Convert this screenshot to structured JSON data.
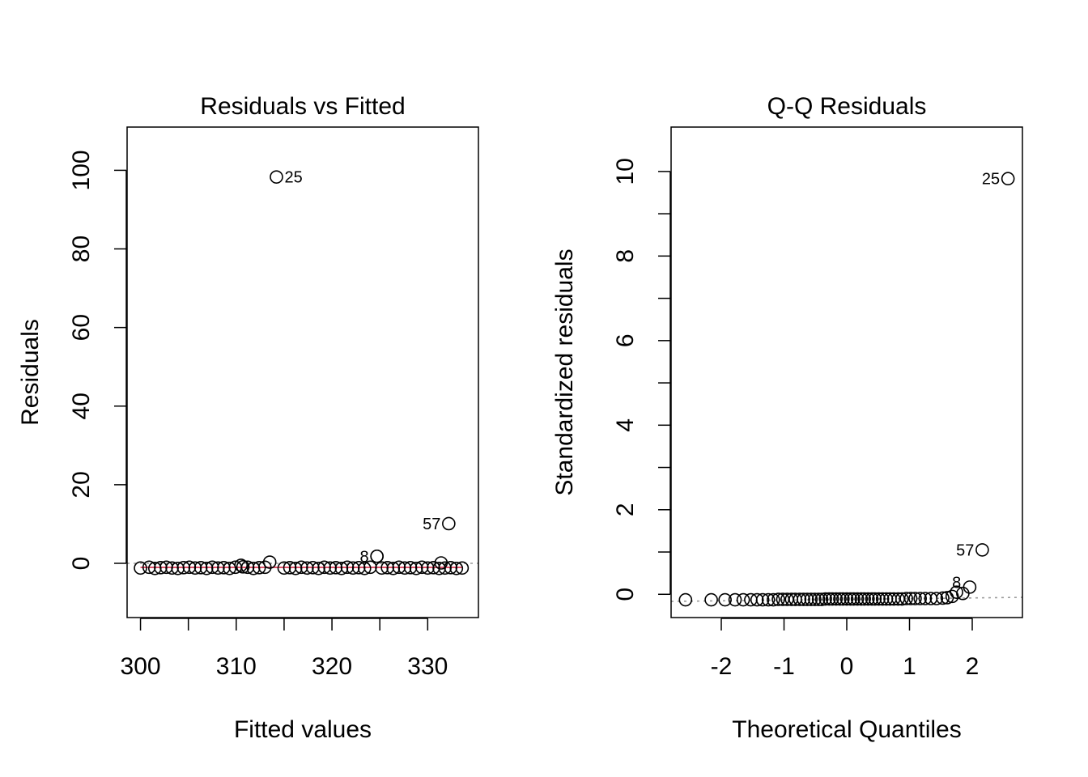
{
  "chart_data": [
    {
      "type": "scatter",
      "title": "Residuals vs Fitted",
      "xlabel": "Fitted values",
      "ylabel": "Residuals",
      "xlim": [
        298.6,
        335.3
      ],
      "ylim": [
        -13.8,
        111
      ],
      "xticks": [
        300,
        310,
        320,
        330
      ],
      "yticks": [
        0,
        20,
        40,
        60,
        80,
        100
      ],
      "reference_line": {
        "y": 0,
        "style": "dotted",
        "color": "#999999"
      },
      "smooth_line": {
        "color": "#DF536B"
      },
      "labeled_points": [
        {
          "label": "25",
          "x": 314.2,
          "y": 98.3,
          "side": "right"
        },
        {
          "label": "57",
          "x": 332.2,
          "y": 10.1,
          "side": "left"
        },
        {
          "label": "8",
          "x": 324.7,
          "y": 1.8,
          "side": "left"
        }
      ],
      "points": {
        "x": [
          300.0,
          300.9,
          301.5,
          302.1,
          302.7,
          303.3,
          303.9,
          304.5,
          305.1,
          305.7,
          306.3,
          306.9,
          307.5,
          308.1,
          308.7,
          309.3,
          309.9,
          310.5,
          310.7,
          311.2,
          311.8,
          312.4,
          313.0,
          313.5,
          315.0,
          315.6,
          316.2,
          316.8,
          317.4,
          318.0,
          318.6,
          319.2,
          319.8,
          320.4,
          321.0,
          321.6,
          322.2,
          322.8,
          323.4,
          324.0,
          324.7,
          325.2,
          325.8,
          326.4,
          327.0,
          327.6,
          328.2,
          328.8,
          329.4,
          330.0,
          330.6,
          331.2,
          331.4,
          331.8,
          332.4,
          333.0,
          333.6
        ],
        "y": [
          -1.2,
          -1.0,
          -1.3,
          -1.1,
          -1.0,
          -1.2,
          -1.3,
          -1.1,
          -1.0,
          -1.2,
          -1.1,
          -1.3,
          -1.0,
          -1.2,
          -1.1,
          -1.3,
          -1.0,
          -0.5,
          -0.9,
          -1.0,
          -1.3,
          -1.1,
          -1.0,
          0.3,
          -1.2,
          -1.1,
          -1.3,
          -1.0,
          -1.2,
          -1.1,
          -1.3,
          -1.0,
          -1.2,
          -1.1,
          -1.3,
          -1.0,
          -1.2,
          -1.1,
          -1.3,
          -1.0,
          1.8,
          -1.2,
          -1.1,
          -1.3,
          -1.0,
          -1.2,
          -1.1,
          -1.3,
          -1.0,
          -1.2,
          -1.1,
          -1.3,
          0.1,
          -1.2,
          -1.1,
          -1.3,
          -1.2
        ]
      }
    },
    {
      "type": "scatter",
      "title": "Q-Q Residuals",
      "xlabel": "Theoretical Quantiles",
      "ylabel": "Standardized residuals",
      "xlim": [
        -2.8,
        2.8
      ],
      "ylim": [
        -0.55,
        11.05
      ],
      "xticks": [
        -2,
        -1,
        0,
        1,
        2
      ],
      "yticks": [
        0,
        2,
        4,
        6,
        8,
        10
      ],
      "reference_line": {
        "type": "qq",
        "style": "dotted",
        "color": "#999999",
        "intercept": -0.12,
        "slope": 0.017
      },
      "labeled_points": [
        {
          "label": "25",
          "x": 2.57,
          "y": 9.83,
          "side": "left"
        },
        {
          "label": "57",
          "x": 2.16,
          "y": 1.05,
          "side": "left"
        },
        {
          "label": "8",
          "x": 1.75,
          "y": 0.05,
          "side": "above"
        }
      ],
      "points": {
        "x": [
          -2.57,
          -2.16,
          -1.94,
          -1.78,
          -1.65,
          -1.53,
          -1.43,
          -1.34,
          -1.25,
          -1.17,
          -1.09,
          -1.02,
          -0.95,
          -0.88,
          -0.82,
          -0.75,
          -0.69,
          -0.63,
          -0.57,
          -0.51,
          -0.45,
          -0.4,
          -0.34,
          -0.28,
          -0.23,
          -0.17,
          -0.11,
          -0.06,
          0.0,
          0.06,
          0.11,
          0.17,
          0.23,
          0.28,
          0.34,
          0.4,
          0.45,
          0.51,
          0.57,
          0.63,
          0.69,
          0.75,
          0.82,
          0.88,
          0.95,
          1.02,
          1.09,
          1.17,
          1.25,
          1.34,
          1.43,
          1.53,
          1.6,
          1.68,
          1.85,
          1.96
        ],
        "y": [
          -0.13,
          -0.13,
          -0.13,
          -0.13,
          -0.13,
          -0.13,
          -0.13,
          -0.13,
          -0.13,
          -0.13,
          -0.12,
          -0.12,
          -0.12,
          -0.12,
          -0.12,
          -0.12,
          -0.12,
          -0.12,
          -0.12,
          -0.12,
          -0.12,
          -0.12,
          -0.11,
          -0.11,
          -0.11,
          -0.11,
          -0.11,
          -0.11,
          -0.11,
          -0.11,
          -0.11,
          -0.11,
          -0.11,
          -0.11,
          -0.11,
          -0.11,
          -0.11,
          -0.11,
          -0.11,
          -0.11,
          -0.11,
          -0.11,
          -0.11,
          -0.11,
          -0.1,
          -0.1,
          -0.1,
          -0.1,
          -0.1,
          -0.1,
          -0.1,
          -0.09,
          -0.08,
          -0.05,
          0.02,
          0.17
        ]
      }
    }
  ]
}
